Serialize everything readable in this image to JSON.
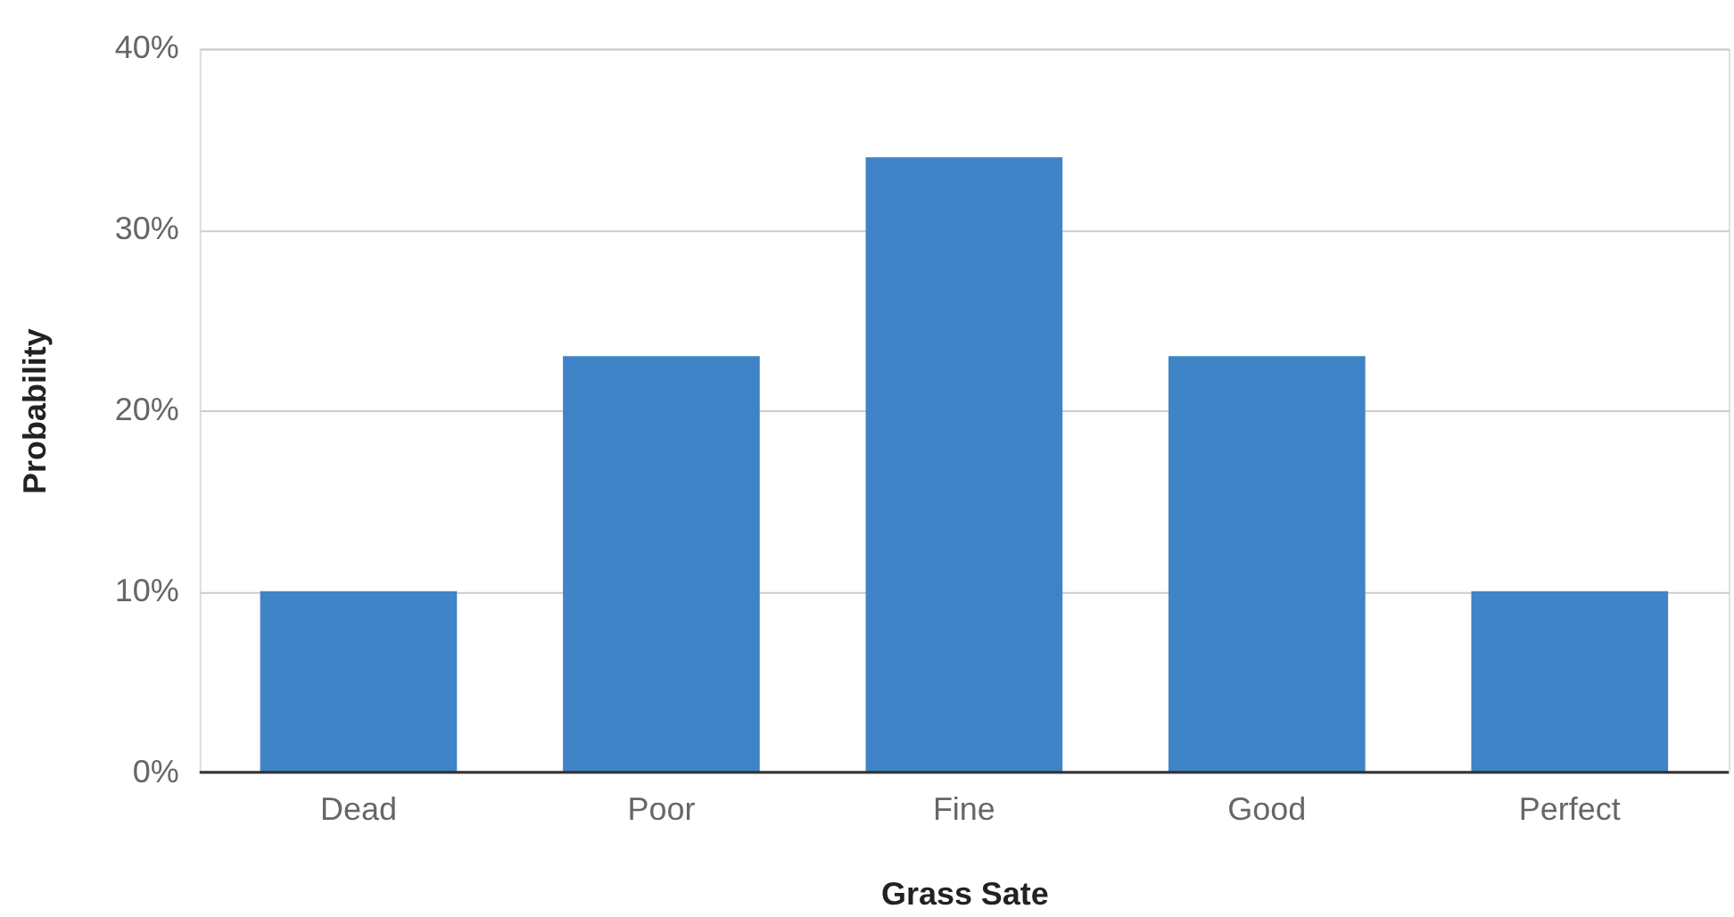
{
  "chart_data": {
    "type": "bar",
    "xlabel": "Grass Sate",
    "ylabel": "Probability",
    "categories": [
      "Dead",
      "Poor",
      "Fine",
      "Good",
      "Perfect"
    ],
    "series": [
      {
        "color": "#3e84c7",
        "values": [
          10,
          23,
          34,
          23,
          10
        ]
      }
    ],
    "ylim": [
      0,
      40
    ],
    "yticks": [
      {
        "value": 0,
        "label": "0%"
      },
      {
        "value": 10,
        "label": "10%"
      },
      {
        "value": 20,
        "label": "20%"
      },
      {
        "value": 30,
        "label": "30%"
      },
      {
        "value": 40,
        "label": "40%"
      }
    ],
    "grid": "y"
  }
}
